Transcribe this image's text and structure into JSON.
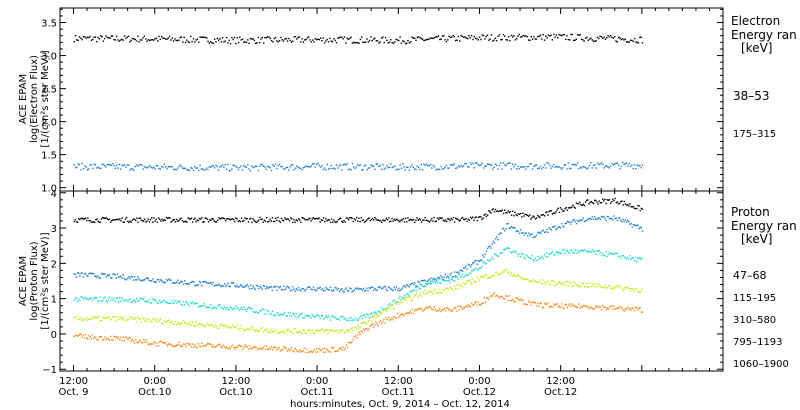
{
  "chart_data": [
    {
      "type": "scatter",
      "ylabel_lines": [
        "ACE EPAM",
        "log(Electron Flux)",
        "[1/(cm²s ster MeV)]"
      ],
      "ylim": [
        0.95,
        3.72
      ],
      "yticks": [
        1.0,
        1.5,
        2.0,
        2.5,
        3.0,
        3.5
      ],
      "ytick_labels": [
        "1.0",
        "1.5",
        "2.0",
        "2.5",
        "3.0",
        "3.5"
      ],
      "legend_title_lines": [
        "Electron",
        "Energy ran"
      ],
      "legend_unit": "[keV]",
      "series": [
        {
          "name": "38–53",
          "color": "#000000",
          "x": [
            0,
            12,
            24,
            36,
            48,
            60,
            72,
            84
          ],
          "y": [
            3.27,
            3.26,
            3.24,
            3.25,
            3.24,
            3.28,
            3.29,
            3.25
          ]
        },
        {
          "name": "175–315",
          "color": "#1f7fd0",
          "x": [
            0,
            12,
            24,
            36,
            48,
            60,
            72,
            84
          ],
          "y": [
            1.33,
            1.32,
            1.31,
            1.33,
            1.32,
            1.34,
            1.34,
            1.35
          ]
        }
      ]
    },
    {
      "type": "scatter",
      "ylabel_lines": [
        "ACE EPAM",
        "log(Proton Flux)",
        "[1/(cm²s ster MeV)]"
      ],
      "ylim": [
        -1.05,
        4.05
      ],
      "yticks": [
        -1,
        0,
        1,
        2,
        3,
        4
      ],
      "ytick_labels": [
        "−1",
        "0",
        "1",
        "2",
        "3",
        "4"
      ],
      "legend_title_lines": [
        "Proton",
        "Energy ran"
      ],
      "legend_unit": "[keV]",
      "series": [
        {
          "name": "47–68",
          "color": "#000000",
          "x": [
            0,
            12,
            24,
            36,
            48,
            58,
            60,
            62,
            64,
            66,
            68,
            72,
            76,
            80,
            84
          ],
          "y": [
            3.25,
            3.25,
            3.25,
            3.25,
            3.25,
            3.25,
            3.3,
            3.55,
            3.45,
            3.4,
            3.3,
            3.55,
            3.75,
            3.8,
            3.55
          ]
        },
        {
          "name": "115–195",
          "color": "#1f7fd0",
          "x": [
            0,
            6,
            12,
            18,
            24,
            30,
            36,
            40,
            44,
            48,
            52,
            56,
            60,
            62,
            64,
            66,
            68,
            72,
            76,
            80,
            84
          ],
          "y": [
            1.7,
            1.65,
            1.55,
            1.45,
            1.4,
            1.3,
            1.3,
            1.25,
            1.3,
            1.3,
            1.5,
            1.7,
            2.1,
            2.6,
            3.1,
            2.9,
            2.8,
            3.1,
            3.3,
            3.3,
            3.0
          ]
        },
        {
          "name": "310–580",
          "color": "#25d8d2",
          "x": [
            0,
            6,
            12,
            18,
            24,
            30,
            36,
            40,
            42,
            44,
            48,
            52,
            56,
            60,
            62,
            64,
            66,
            68,
            72,
            76,
            80,
            84
          ],
          "y": [
            1.0,
            1.0,
            0.95,
            0.85,
            0.75,
            0.6,
            0.5,
            0.45,
            0.45,
            0.55,
            1.0,
            1.45,
            1.55,
            1.9,
            2.2,
            2.45,
            2.25,
            2.15,
            2.35,
            2.35,
            2.25,
            2.1
          ]
        },
        {
          "name": "795–1193",
          "color": "#c8e61e",
          "x": [
            0,
            6,
            12,
            18,
            24,
            30,
            36,
            40,
            42,
            44,
            48,
            52,
            56,
            60,
            62,
            64,
            66,
            68,
            72,
            76,
            80,
            84
          ],
          "y": [
            0.45,
            0.45,
            0.4,
            0.3,
            0.2,
            0.1,
            0.1,
            0.1,
            0.2,
            0.45,
            0.9,
            1.2,
            1.3,
            1.6,
            1.7,
            1.8,
            1.6,
            1.5,
            1.45,
            1.4,
            1.35,
            1.25
          ]
        },
        {
          "name": "1060–1900",
          "color": "#f08a1c",
          "x": [
            0,
            6,
            12,
            18,
            24,
            30,
            36,
            40,
            42,
            44,
            48,
            52,
            56,
            60,
            62,
            64,
            66,
            68,
            72,
            76,
            80,
            84
          ],
          "y": [
            -0.05,
            -0.1,
            -0.25,
            -0.3,
            -0.35,
            -0.4,
            -0.45,
            -0.4,
            0.0,
            0.25,
            0.55,
            0.75,
            0.7,
            0.9,
            1.15,
            1.05,
            0.95,
            0.85,
            0.8,
            0.8,
            0.75,
            0.7
          ]
        }
      ]
    }
  ],
  "x_axis": {
    "xlim": [
      -2,
      96
    ],
    "major_ticks": [
      0,
      12,
      24,
      36,
      48,
      60,
      72,
      84,
      96
    ],
    "tick_labels": [
      {
        "x": 0,
        "time": "12:00",
        "date": "Oct. 9"
      },
      {
        "x": 12,
        "time": "0:00",
        "date": "Oct.10"
      },
      {
        "x": 24,
        "time": "12:00",
        "date": "Oct.10"
      },
      {
        "x": 36,
        "time": "0:00",
        "date": "Oct.11"
      },
      {
        "x": 48,
        "time": "12:00",
        "date": "Oct.11"
      },
      {
        "x": 60,
        "time": "0:00",
        "date": "Oct.12"
      },
      {
        "x": 72,
        "time": "12:00",
        "date": "Oct.12"
      }
    ],
    "xlabel": "hours:minutes, Oct.  9, 2014 – Oct. 12, 2014"
  }
}
